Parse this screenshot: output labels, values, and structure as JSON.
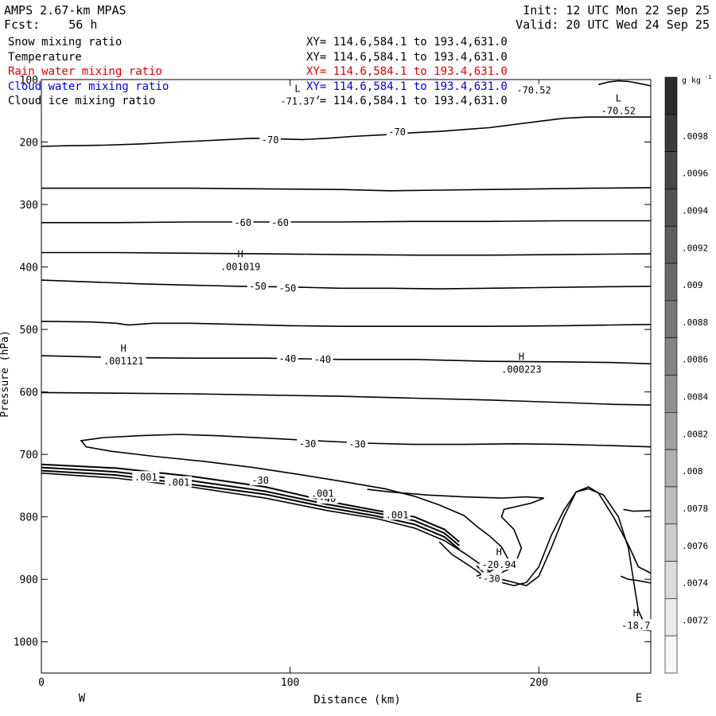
{
  "header": {
    "model": "AMPS 2.67-km MPAS",
    "fcst": "Fcst:    56 h",
    "init": "Init: 12 UTC Mon 22 Sep 25",
    "valid": "Valid: 20 UTC Wed 24 Sep 25"
  },
  "fields": [
    {
      "name": "Snow mixing ratio",
      "xy": "",
      "color": "#000000"
    },
    {
      "name": "Temperature",
      "xy": "XY= 114.6,584.1 to 193.4,631.0",
      "color": "#000000"
    },
    {
      "name": "Rain water mixing ratio",
      "xy": "XY= 114.6,584.1 to 193.4,631.0",
      "color": "#e00000"
    },
    {
      "name": "Cloud water mixing ratio",
      "xy": "XY= 114.6,584.1 to 193.4,631.0",
      "color": "#0000e0"
    },
    {
      "name": "Cloud ice mixing ratio",
      "xy": "XY= 114.6,584.1 to 193.4,631.0",
      "color": "#000000"
    }
  ],
  "first_xy": "XY= 114.6,584.1 to 193.4,631.0",
  "chart_data": {
    "type": "line",
    "xlabel": "Distance (km)",
    "ylabel": "Pressure (hPa)",
    "xlim": [
      0,
      245
    ],
    "ylim": [
      1050,
      100
    ],
    "x_ticks": [
      0,
      100,
      200
    ],
    "y_ticks": [
      100,
      200,
      300,
      400,
      500,
      600,
      700,
      800,
      900,
      1000
    ],
    "x_end_labels": [
      "W",
      "E"
    ],
    "colorbar": {
      "unit": "g kg",
      "unit_sup": "-1",
      "ticks": [
        ".0098",
        ".0096",
        ".0094",
        ".0092",
        ".009",
        ".0088",
        ".0086",
        ".0084",
        ".0082",
        ".008",
        ".0078",
        ".0076",
        ".0074",
        ".0072"
      ],
      "shades": [
        "#2c2c2c",
        "#3a3a3a",
        "#474747",
        "#525252",
        "#5e5e5e",
        "#6a6a6a",
        "#777777",
        "#848484",
        "#919191",
        "#9f9f9f",
        "#afafaf",
        "#bebebe",
        "#cdcdcd",
        "#dcdcdc",
        "#ebebeb",
        "#f7f7f7"
      ]
    },
    "isotherms": [
      {
        "label": "-70",
        "points": [
          [
            0,
            207
          ],
          [
            10,
            206
          ],
          [
            25,
            205
          ],
          [
            40,
            203
          ],
          [
            55,
            200
          ],
          [
            65,
            198
          ],
          [
            75,
            196
          ],
          [
            85,
            194
          ],
          [
            95,
            195
          ],
          [
            105,
            196
          ],
          [
            115,
            194
          ],
          [
            125,
            191
          ],
          [
            140,
            188
          ],
          [
            150,
            185
          ],
          [
            160,
            183
          ],
          [
            170,
            180
          ],
          [
            180,
            177
          ],
          [
            190,
            172
          ],
          [
            200,
            167
          ],
          [
            210,
            162
          ],
          [
            220,
            160
          ],
          [
            232,
            160
          ],
          [
            245,
            160
          ]
        ]
      },
      {
        "points": [
          [
            0,
            274
          ],
          [
            30,
            274
          ],
          [
            60,
            274
          ],
          [
            90,
            275
          ],
          [
            120,
            276
          ],
          [
            140,
            278
          ],
          [
            160,
            277
          ],
          [
            180,
            276
          ],
          [
            200,
            275
          ],
          [
            220,
            274
          ],
          [
            245,
            273
          ]
        ]
      },
      {
        "label": "-60",
        "points": [
          [
            0,
            329
          ],
          [
            30,
            329
          ],
          [
            60,
            328
          ],
          [
            90,
            328
          ],
          [
            120,
            328
          ],
          [
            150,
            327
          ],
          [
            180,
            327
          ],
          [
            210,
            326
          ],
          [
            245,
            326
          ]
        ]
      },
      {
        "points": [
          [
            0,
            377
          ],
          [
            30,
            377
          ],
          [
            60,
            378
          ],
          [
            90,
            379
          ],
          [
            120,
            380
          ],
          [
            150,
            381
          ],
          [
            180,
            381
          ],
          [
            210,
            380
          ],
          [
            245,
            379
          ]
        ]
      },
      {
        "label": "-50",
        "points": [
          [
            0,
            421
          ],
          [
            20,
            424
          ],
          [
            40,
            427
          ],
          [
            60,
            429
          ],
          [
            80,
            431
          ],
          [
            100,
            432
          ],
          [
            120,
            434
          ],
          [
            140,
            434
          ],
          [
            160,
            435
          ],
          [
            180,
            434
          ],
          [
            200,
            433
          ],
          [
            220,
            432
          ],
          [
            245,
            431
          ]
        ]
      },
      {
        "points": [
          [
            0,
            487
          ],
          [
            20,
            488
          ],
          [
            30,
            490
          ],
          [
            35,
            493
          ],
          [
            45,
            490
          ],
          [
            60,
            490
          ],
          [
            80,
            492
          ],
          [
            100,
            494
          ],
          [
            120,
            495
          ],
          [
            150,
            495
          ],
          [
            180,
            495
          ],
          [
            210,
            494
          ],
          [
            245,
            492
          ]
        ]
      },
      {
        "label": "-40",
        "points": [
          [
            0,
            542
          ],
          [
            30,
            545
          ],
          [
            60,
            546
          ],
          [
            90,
            546
          ],
          [
            120,
            548
          ],
          [
            150,
            548
          ],
          [
            180,
            551
          ],
          [
            210,
            552
          ],
          [
            230,
            553
          ],
          [
            245,
            555
          ]
        ]
      },
      {
        "points": [
          [
            0,
            601
          ],
          [
            30,
            602
          ],
          [
            60,
            603
          ],
          [
            90,
            605
          ],
          [
            120,
            607
          ],
          [
            150,
            610
          ],
          [
            180,
            613
          ],
          [
            210,
            617
          ],
          [
            230,
            620
          ],
          [
            245,
            621
          ]
        ]
      },
      {
        "label": "-30",
        "points": [
          [
            245,
            688
          ],
          [
            230,
            686
          ],
          [
            210,
            684
          ],
          [
            190,
            683
          ],
          [
            170,
            684
          ],
          [
            150,
            684
          ],
          [
            130,
            682
          ],
          [
            110,
            678
          ],
          [
            90,
            674
          ],
          [
            70,
            670
          ],
          [
            55,
            668
          ],
          [
            40,
            670
          ],
          [
            25,
            673
          ],
          [
            16,
            678
          ],
          [
            18,
            688
          ],
          [
            28,
            695
          ],
          [
            45,
            703
          ],
          [
            65,
            711
          ],
          [
            85,
            721
          ],
          [
            105,
            733
          ],
          [
            122,
            744
          ],
          [
            138,
            755
          ],
          [
            150,
            767
          ],
          [
            160,
            781
          ],
          [
            170,
            798
          ],
          [
            175,
            815
          ],
          [
            180,
            830
          ],
          [
            185,
            848
          ],
          [
            188,
            870
          ],
          [
            180,
            888
          ],
          [
            175,
            895
          ]
        ]
      },
      {
        "label": "-40",
        "points": [
          [
            0,
            716
          ],
          [
            30,
            722
          ],
          [
            60,
            735
          ],
          [
            90,
            752
          ],
          [
            115,
            775
          ],
          [
            135,
            790
          ],
          [
            150,
            800
          ],
          [
            162,
            820
          ],
          [
            168,
            840
          ]
        ]
      },
      {
        "points": [
          [
            0,
            721
          ],
          [
            30,
            728
          ],
          [
            60,
            742
          ],
          [
            90,
            759
          ],
          [
            115,
            780
          ],
          [
            135,
            794
          ],
          [
            150,
            806
          ],
          [
            162,
            826
          ],
          [
            168,
            846
          ]
        ]
      },
      {
        "points": [
          [
            0,
            726
          ],
          [
            30,
            733
          ],
          [
            60,
            748
          ],
          [
            90,
            764
          ],
          [
            115,
            785
          ],
          [
            135,
            799
          ],
          [
            150,
            812
          ],
          [
            162,
            832
          ],
          [
            168,
            852
          ]
        ]
      },
      {
        "points": [
          [
            131,
            756
          ],
          [
            140,
            760
          ],
          [
            155,
            765
          ],
          [
            170,
            768
          ],
          [
            185,
            770
          ],
          [
            195,
            768
          ],
          [
            202,
            770
          ],
          [
            197,
            778
          ],
          [
            186,
            788
          ],
          [
            185,
            800
          ],
          [
            190,
            820
          ],
          [
            193,
            850
          ],
          [
            190,
            880
          ],
          [
            183,
            893
          ],
          [
            176,
            898
          ]
        ]
      },
      {
        "label": "-30",
        "points": [
          [
            175,
            878
          ],
          [
            178,
            890
          ],
          [
            185,
            900
          ],
          [
            195,
            910
          ],
          [
            200,
            895
          ],
          [
            205,
            850
          ],
          [
            210,
            800
          ],
          [
            215,
            760
          ],
          [
            220,
            752
          ],
          [
            224,
            762
          ],
          [
            230,
            800
          ],
          [
            236,
            845
          ],
          [
            240,
            880
          ],
          [
            245,
            890
          ]
        ]
      },
      {
        "label": "-20.94",
        "points": [
          [
            160,
            840
          ],
          [
            165,
            860
          ],
          [
            172,
            878
          ],
          [
            178,
            895
          ],
          [
            185,
            905
          ]
        ]
      },
      {
        "points": [
          [
            0,
            730
          ],
          [
            30,
            738
          ],
          [
            60,
            752
          ],
          [
            90,
            770
          ],
          [
            115,
            790
          ],
          [
            135,
            803
          ],
          [
            150,
            818
          ],
          [
            162,
            838
          ],
          [
            170,
            858
          ],
          [
            178,
            880
          ],
          [
            185,
            905
          ],
          [
            190,
            910
          ],
          [
            195,
            905
          ],
          [
            200,
            880
          ],
          [
            205,
            830
          ],
          [
            210,
            790
          ],
          [
            215,
            760
          ],
          [
            220,
            755
          ],
          [
            226,
            765
          ],
          [
            232,
            800
          ],
          [
            236,
            850
          ],
          [
            238,
            900
          ],
          [
            240,
            950
          ],
          [
            243,
            975
          ],
          [
            245,
            980
          ]
        ]
      },
      {
        "points": [
          [
            245,
            790
          ],
          [
            238,
            791
          ],
          [
            234,
            788
          ]
        ]
      },
      {
        "points": [
          [
            245,
            906
          ],
          [
            240,
            902
          ],
          [
            236,
            900
          ],
          [
            233,
            895
          ]
        ]
      },
      {
        "points": [
          [
            245,
            975
          ],
          [
            238,
            970
          ],
          [
            235,
            975
          ],
          [
            238,
            980
          ],
          [
            245,
            982
          ]
        ]
      },
      {
        "points": [
          [
            224,
            108
          ],
          [
            228,
            104
          ],
          [
            232,
            102
          ],
          [
            236,
            103
          ],
          [
            240,
            106
          ],
          [
            245,
            110
          ]
        ]
      }
    ],
    "annotations": [
      {
        "marker": "L",
        "value": "-71.37",
        "x": 103,
        "p": 135
      },
      {
        "marker": "",
        "value": "-70.52",
        "x": 198,
        "p": 117
      },
      {
        "marker": "L",
        "value": "-70.52",
        "x": 232,
        "p": 150
      },
      {
        "marker": "H",
        "value": ".001019",
        "x": 80,
        "p": 400
      },
      {
        "marker": "H",
        "value": ".001121",
        "x": 33,
        "p": 551
      },
      {
        "marker": "H",
        "value": ".000223",
        "x": 193,
        "p": 564
      },
      {
        "marker": "H",
        "value": "-20.94",
        "x": 184,
        "p": 877
      },
      {
        "marker": "H",
        "value": "-18.7",
        "x": 239,
        "p": 974
      },
      {
        "marker": "",
        "value": "-70",
        "x": 92,
        "p": 197
      },
      {
        "marker": "",
        "value": "-70",
        "x": 143,
        "p": 184
      },
      {
        "marker": "",
        "value": "-60",
        "x": 81,
        "p": 329
      },
      {
        "marker": "",
        "value": "-60",
        "x": 96,
        "p": 329
      },
      {
        "marker": "",
        "value": "-50",
        "x": 87,
        "p": 431
      },
      {
        "marker": "",
        "value": "-50",
        "x": 99,
        "p": 434
      },
      {
        "marker": "",
        "value": "-40",
        "x": 99,
        "p": 547
      },
      {
        "marker": "",
        "value": "-40",
        "x": 113,
        "p": 548
      },
      {
        "marker": "",
        "value": "-30",
        "x": 107,
        "p": 683
      },
      {
        "marker": "",
        "value": "-30",
        "x": 127,
        "p": 684
      },
      {
        "marker": "",
        "value": "-30",
        "x": 88,
        "p": 742
      },
      {
        "marker": "",
        "value": "-40",
        "x": 115,
        "p": 771
      },
      {
        "marker": "",
        "value": ".001",
        "x": 143,
        "p": 797
      },
      {
        "marker": "",
        "value": ".001",
        "x": 113,
        "p": 763
      },
      {
        "marker": "",
        "value": ".001",
        "x": 55,
        "p": 745
      },
      {
        "marker": "",
        "value": ".001",
        "x": 42,
        "p": 737
      },
      {
        "marker": "",
        "value": "-30",
        "x": 181,
        "p": 899
      }
    ]
  }
}
